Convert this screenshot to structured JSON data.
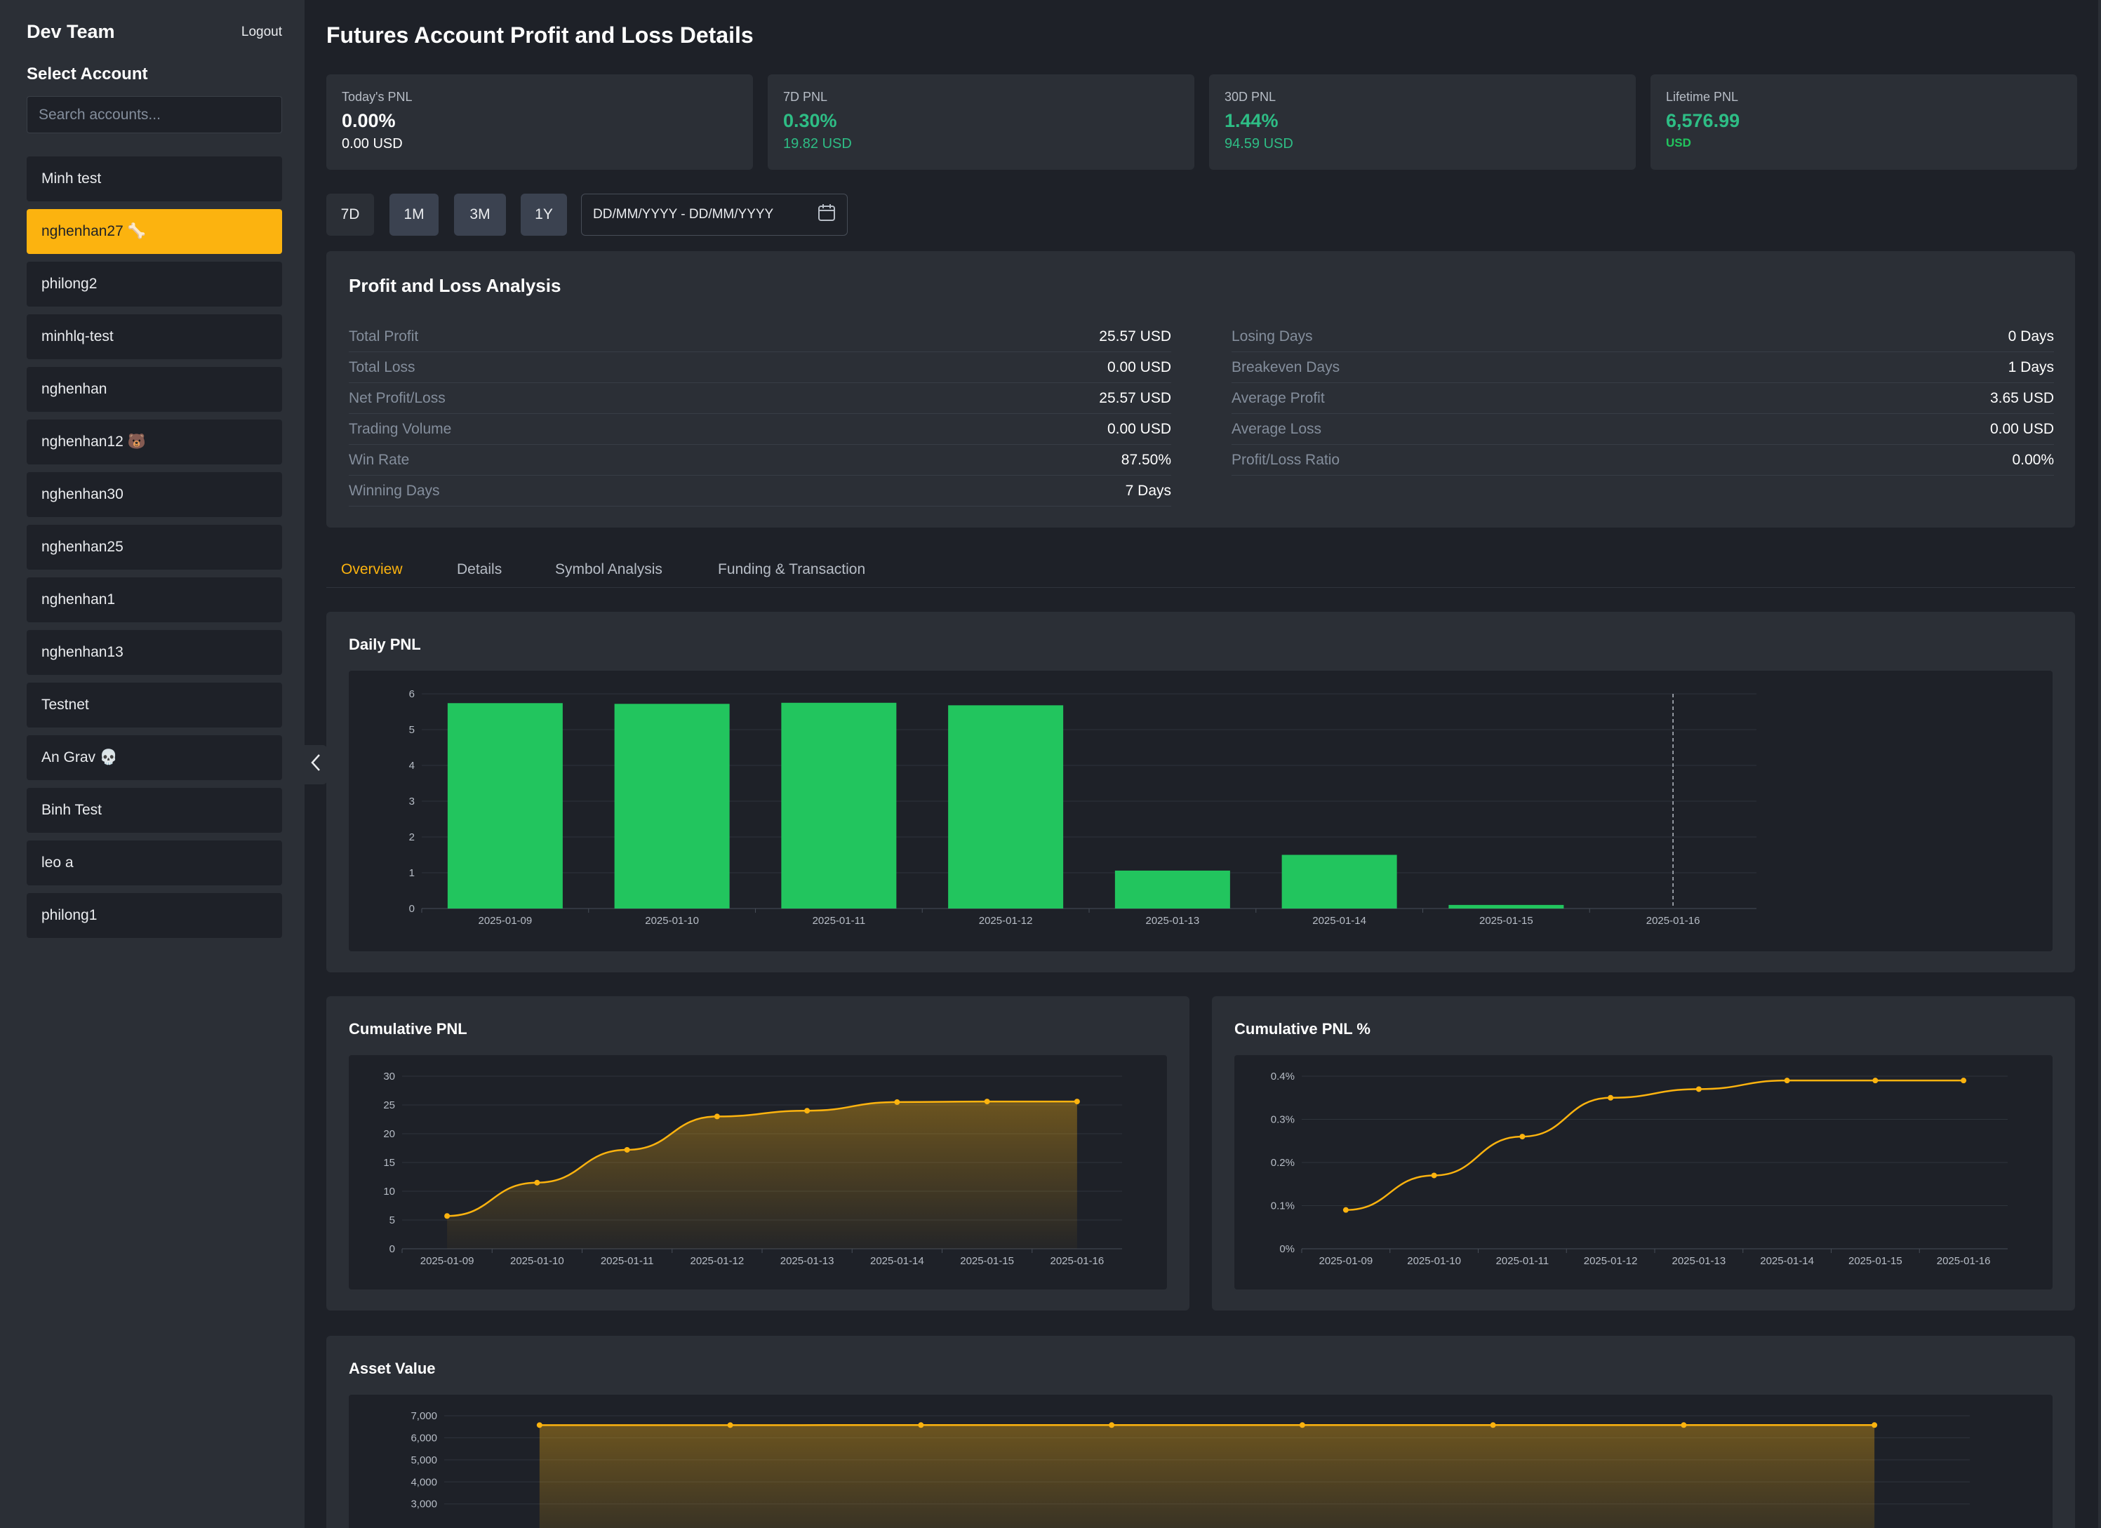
{
  "sidebar": {
    "team_name": "Dev Team",
    "logout_label": "Logout",
    "select_title": "Select Account",
    "search_placeholder": "Search accounts...",
    "accounts": [
      {
        "label": "Minh test",
        "active": false
      },
      {
        "label": "nghenhan27 🦴",
        "active": true
      },
      {
        "label": "philong2",
        "active": false
      },
      {
        "label": "minhlq-test",
        "active": false
      },
      {
        "label": "nghenhan",
        "active": false
      },
      {
        "label": "nghenhan12 🐻",
        "active": false
      },
      {
        "label": "nghenhan30",
        "active": false
      },
      {
        "label": "nghenhan25",
        "active": false
      },
      {
        "label": "nghenhan1",
        "active": false
      },
      {
        "label": "nghenhan13",
        "active": false
      },
      {
        "label": "Testnet",
        "active": false
      },
      {
        "label": "An Grav 💀",
        "active": false
      },
      {
        "label": "Binh Test",
        "active": false
      },
      {
        "label": "leo a",
        "active": false
      },
      {
        "label": "philong1",
        "active": false
      }
    ]
  },
  "page_title": "Futures Account Profit and Loss Details",
  "stats": [
    {
      "label": "Today's PNL",
      "main": "0.00%",
      "sub": "0.00 USD",
      "color": "#ffffff"
    },
    {
      "label": "7D PNL",
      "main": "0.30%",
      "sub": "19.82 USD",
      "color": "#2ebd85"
    },
    {
      "label": "30D PNL",
      "main": "1.44%",
      "sub": "94.59 USD",
      "color": "#2ebd85"
    },
    {
      "label": "Lifetime PNL",
      "main": "6,576.99",
      "sub": "USD",
      "color": "#2ebd85"
    }
  ],
  "range_buttons": [
    "7D",
    "1M",
    "3M",
    "1Y"
  ],
  "date_range_placeholder": "DD/MM/YYYY - DD/MM/YYYY",
  "analysis": {
    "title": "Profit and Loss Analysis",
    "left": [
      {
        "key": "Total Profit",
        "value": "25.57 USD"
      },
      {
        "key": "Total Loss",
        "value": "0.00 USD"
      },
      {
        "key": "Net Profit/Loss",
        "value": "25.57 USD"
      },
      {
        "key": "Trading Volume",
        "value": "0.00 USD"
      },
      {
        "key": "Win Rate",
        "value": "87.50%"
      },
      {
        "key": "Winning Days",
        "value": "7 Days"
      }
    ],
    "right": [
      {
        "key": "Losing Days",
        "value": "0 Days"
      },
      {
        "key": "Breakeven Days",
        "value": "1 Days"
      },
      {
        "key": "Average Profit",
        "value": "3.65 USD"
      },
      {
        "key": "Average Loss",
        "value": "0.00 USD"
      },
      {
        "key": "Profit/Loss Ratio",
        "value": "0.00%"
      }
    ]
  },
  "tabs": [
    "Overview",
    "Details",
    "Symbol Analysis",
    "Funding & Transaction"
  ],
  "colors": {
    "accent": "#fcb30f",
    "positive": "#22c55e",
    "panel": "#2b2f36",
    "background": "#1e2128"
  },
  "chart_data": [
    {
      "type": "bar",
      "title": "Daily PNL",
      "categories": [
        "2025-01-09",
        "2025-01-10",
        "2025-01-11",
        "2025-01-12",
        "2025-01-13",
        "2025-01-14",
        "2025-01-15",
        "2025-01-16"
      ],
      "values": [
        5.74,
        5.72,
        5.75,
        5.68,
        1.06,
        1.5,
        0.1,
        0
      ],
      "ylim": [
        0,
        6
      ],
      "yticks": [
        "0",
        "1",
        "2",
        "3",
        "4",
        "5",
        "6"
      ],
      "grid": true,
      "color": "#22c55e"
    },
    {
      "type": "area",
      "title": "Cumulative PNL",
      "x": [
        "2025-01-09",
        "2025-01-10",
        "2025-01-11",
        "2025-01-12",
        "2025-01-13",
        "2025-01-14",
        "2025-01-15",
        "2025-01-16"
      ],
      "values": [
        5.7,
        11.5,
        17.2,
        23.0,
        24.0,
        25.5,
        25.6,
        25.6
      ],
      "ylim": [
        0,
        30
      ],
      "yticks": [
        "0",
        "5",
        "10",
        "15",
        "20",
        "25",
        "30"
      ],
      "grid": true,
      "color": "#fcb30f"
    },
    {
      "type": "line",
      "title": "Cumulative PNL %",
      "x": [
        "2025-01-09",
        "2025-01-10",
        "2025-01-11",
        "2025-01-12",
        "2025-01-13",
        "2025-01-14",
        "2025-01-15",
        "2025-01-16"
      ],
      "values": [
        0.09,
        0.17,
        0.26,
        0.35,
        0.37,
        0.39,
        0.39,
        0.39
      ],
      "ylim": [
        0,
        0.4
      ],
      "yticks": [
        "0%",
        "0.1%",
        "0.2%",
        "0.3%",
        "0.4%"
      ],
      "grid": true,
      "color": "#fcb30f"
    },
    {
      "type": "area",
      "title": "Asset Value",
      "values": [
        6576,
        6576,
        6577,
        6577,
        6577,
        6577,
        6577,
        6577
      ],
      "ylim": [
        0,
        7000
      ],
      "yticks": [
        "3,000",
        "4,000",
        "5,000",
        "6,000",
        "7,000"
      ],
      "grid": true,
      "color": "#fcb30f"
    }
  ]
}
